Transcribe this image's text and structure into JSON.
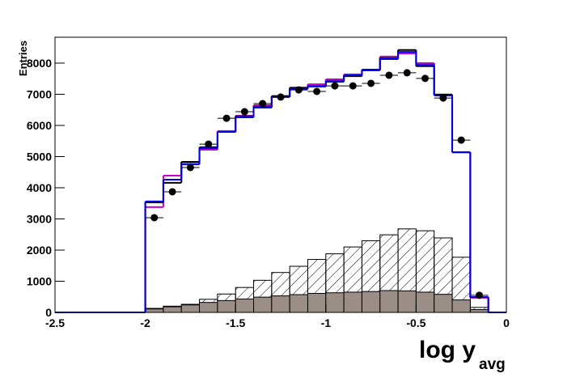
{
  "chart_data": {
    "type": "histogram",
    "xlabel": "log y",
    "xlabel_sub": "avg",
    "ylabel": "Entries",
    "xlim": [
      -2.5,
      0
    ],
    "ylim": [
      0,
      8830
    ],
    "xticks": [
      -2.5,
      -2,
      -1.5,
      -1,
      -0.5,
      0
    ],
    "yticks": [
      0,
      1000,
      2000,
      3000,
      4000,
      5000,
      6000,
      7000,
      8000
    ],
    "bins": [
      -2.0,
      -1.9,
      -1.8,
      -1.7,
      -1.6,
      -1.5,
      -1.4,
      -1.3,
      -1.2,
      -1.1,
      -1.0,
      -0.9,
      -0.8,
      -0.7,
      -0.6,
      -0.5,
      -0.4,
      -0.3,
      -0.2,
      -0.1
    ],
    "series": [
      {
        "style": "hatch",
        "color": "#000000",
        "values": [
          130,
          200,
          260,
          420,
          590,
          800,
          1030,
          1280,
          1480,
          1700,
          1880,
          2100,
          2300,
          2490,
          2680,
          2620,
          2390,
          1770,
          160
        ]
      },
      {
        "style": "fill",
        "color": "#9a8e86",
        "values": [
          110,
          180,
          240,
          320,
          380,
          430,
          490,
          530,
          570,
          610,
          630,
          650,
          670,
          700,
          690,
          650,
          580,
          400,
          90
        ]
      },
      {
        "style": "step",
        "color": "#cc00cc",
        "values": [
          3380,
          4390,
          4810,
          5220,
          5820,
          6310,
          6650,
          6940,
          7220,
          7320,
          7480,
          7640,
          7790,
          8210,
          8310,
          8000,
          6990,
          5140,
          470
        ]
      },
      {
        "style": "step",
        "color": "#000000",
        "values": [
          3530,
          4160,
          4830,
          5300,
          5790,
          6290,
          6600,
          6940,
          7190,
          7250,
          7400,
          7580,
          7770,
          8160,
          8420,
          7900,
          6990,
          5140,
          490
        ]
      },
      {
        "style": "step",
        "color": "#0000ee",
        "values": [
          3560,
          4260,
          4750,
          5270,
          5790,
          6260,
          6570,
          6910,
          7170,
          7270,
          7430,
          7610,
          7790,
          8130,
          8360,
          7950,
          6960,
          5140,
          490
        ]
      },
      {
        "style": "points",
        "color": "#000000",
        "values": [
          3040,
          3870,
          4650,
          5400,
          6230,
          6440,
          6700,
          6910,
          7140,
          7090,
          7270,
          7270,
          7350,
          7610,
          7690,
          7510,
          6880,
          5530,
          550
        ]
      }
    ]
  }
}
